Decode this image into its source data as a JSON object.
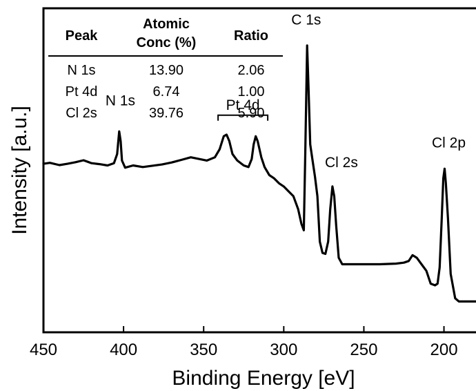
{
  "chart_data": {
    "type": "line",
    "xlabel": "Binding Energy [eV]",
    "ylabel": "Intensity [a.u.]",
    "xlim": [
      450,
      180
    ],
    "x_reversed": true,
    "xticks": [
      450,
      400,
      350,
      300,
      250,
      200
    ],
    "y_ticks_shown": false,
    "ylim": [
      0,
      100
    ],
    "grid": false,
    "series": [
      {
        "color": "#000000",
        "points": [
          [
            450,
            52.0
          ],
          [
            446,
            52.3
          ],
          [
            440,
            51.6
          ],
          [
            435,
            52.0
          ],
          [
            430,
            52.5
          ],
          [
            425,
            53.1
          ],
          [
            420,
            52.2
          ],
          [
            415,
            51.9
          ],
          [
            410,
            51.5
          ],
          [
            406,
            52.2
          ],
          [
            404,
            55.0
          ],
          [
            402.7,
            62.0
          ],
          [
            401.8,
            59.0
          ],
          [
            401,
            53.0
          ],
          [
            399,
            50.8
          ],
          [
            394,
            51.5
          ],
          [
            388,
            51.0
          ],
          [
            382,
            51.4
          ],
          [
            376,
            51.8
          ],
          [
            370,
            52.4
          ],
          [
            364,
            53.2
          ],
          [
            358,
            54.0
          ],
          [
            353,
            53.5
          ],
          [
            348,
            53.0
          ],
          [
            343,
            54.0
          ],
          [
            340,
            56.5
          ],
          [
            337.5,
            60.5
          ],
          [
            335.7,
            61.0
          ],
          [
            334,
            59.0
          ],
          [
            332,
            55.0
          ],
          [
            329,
            53.0
          ],
          [
            325,
            51.5
          ],
          [
            322,
            51.0
          ],
          [
            320,
            53.5
          ],
          [
            318.8,
            58.0
          ],
          [
            317.5,
            60.5
          ],
          [
            316.3,
            59.0
          ],
          [
            314,
            54.0
          ],
          [
            312,
            51.0
          ],
          [
            309,
            48.5
          ],
          [
            306,
            47.5
          ],
          [
            303,
            46.0
          ],
          [
            300,
            45.0
          ],
          [
            297,
            43.5
          ],
          [
            294,
            42.0
          ],
          [
            291,
            38.0
          ],
          [
            289,
            33.5
          ],
          [
            287.5,
            31.5
          ],
          [
            286.6,
            55.0
          ],
          [
            285.4,
            88.5
          ],
          [
            284.5,
            75.0
          ],
          [
            283.5,
            58.0
          ],
          [
            282,
            53.0
          ],
          [
            280.5,
            48.0
          ],
          [
            279,
            42.0
          ],
          [
            277.5,
            28.0
          ],
          [
            275.8,
            24.5
          ],
          [
            274,
            24.2
          ],
          [
            272.3,
            28.0
          ],
          [
            271,
            38.0
          ],
          [
            269.6,
            45.0
          ],
          [
            268.5,
            42.0
          ],
          [
            267.3,
            33.0
          ],
          [
            265.7,
            23.0
          ],
          [
            263.5,
            21.0
          ],
          [
            255,
            21.0
          ],
          [
            240,
            21.0
          ],
          [
            230,
            21.2
          ],
          [
            225,
            21.5
          ],
          [
            222,
            22.0
          ],
          [
            219.6,
            23.8
          ],
          [
            217,
            23.0
          ],
          [
            214,
            21.0
          ],
          [
            211,
            19.0
          ],
          [
            208.3,
            15.0
          ],
          [
            205.6,
            14.5
          ],
          [
            204,
            15.0
          ],
          [
            202.7,
            20.0
          ],
          [
            201.4,
            35.0
          ],
          [
            200.4,
            47.5
          ],
          [
            199.6,
            50.5
          ],
          [
            198.8,
            46.0
          ],
          [
            197.5,
            35.0
          ],
          [
            195.8,
            18.0
          ],
          [
            193,
            10.5
          ],
          [
            190.7,
            9.5
          ],
          [
            187,
            9.5
          ],
          [
            180,
            9.5
          ]
        ]
      }
    ],
    "peak_labels": [
      {
        "text": "N 1s",
        "x": 402,
        "y": 70
      },
      {
        "text": "Pt 4d",
        "x": 327,
        "y": 70
      },
      {
        "text": "C 1s",
        "x": 286,
        "y": 95
      },
      {
        "text": "Cl 2s",
        "x": 264,
        "y": 51
      },
      {
        "text": "Cl 2p",
        "x": 197,
        "y": 57
      }
    ],
    "bracket": {
      "x": [
        341,
        310
      ],
      "y": 67,
      "label": "Pt 4d"
    },
    "inset_table": {
      "headers": [
        {
          "lines": [
            "Peak"
          ]
        },
        {
          "lines": [
            "Atomic",
            "Conc (%)"
          ]
        },
        {
          "lines": [
            "Ratio"
          ]
        }
      ],
      "rows": [
        [
          "N 1s",
          "13.90",
          "2.06"
        ],
        [
          "Pt 4d",
          "6.74",
          "1.00"
        ],
        [
          "Cl 2s",
          "39.76",
          "5.90"
        ]
      ]
    }
  }
}
